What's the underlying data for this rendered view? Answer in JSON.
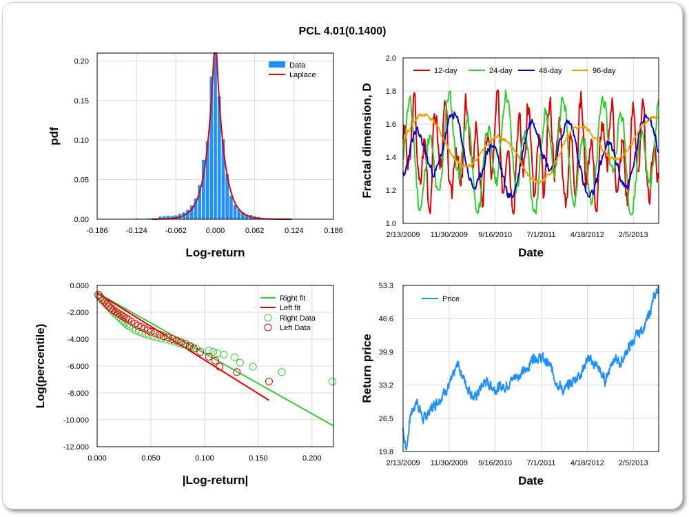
{
  "page_title": "PCL 4.01(0.1400)",
  "chart_data": [
    {
      "id": "histogram",
      "type": "bar",
      "xlabel": "Log-return",
      "ylabel": "pdf",
      "xlim": [
        -0.186,
        0.186
      ],
      "ylim": [
        0,
        0.21
      ],
      "x_ticks": [
        "-0.186",
        "-0.124",
        "-0.062",
        "0.000",
        "0.062",
        "0.124",
        "0.186"
      ],
      "y_ticks": [
        "0.00",
        "0.05",
        "0.10",
        "0.15",
        "0.20"
      ],
      "legend": [
        "Data",
        "Laplace"
      ],
      "legend_position": "top-right",
      "grid": true,
      "colors": {
        "Data": "#1e90ff",
        "Laplace": "#e00000"
      },
      "bin_width": 0.0062,
      "bins": [
        {
          "x": -0.124,
          "y": 0.0008
        },
        {
          "x": -0.1178,
          "y": 0.0006
        },
        {
          "x": -0.1116,
          "y": 0.0005
        },
        {
          "x": -0.1054,
          "y": 0.001
        },
        {
          "x": -0.0992,
          "y": 0.0012
        },
        {
          "x": -0.093,
          "y": 0.0011
        },
        {
          "x": -0.0868,
          "y": 0.0032
        },
        {
          "x": -0.0806,
          "y": 0.0038
        },
        {
          "x": -0.0744,
          "y": 0.0045
        },
        {
          "x": -0.0682,
          "y": 0.0041
        },
        {
          "x": -0.062,
          "y": 0.0048
        },
        {
          "x": -0.0558,
          "y": 0.0068
        },
        {
          "x": -0.0496,
          "y": 0.0085
        },
        {
          "x": -0.0434,
          "y": 0.0118
        },
        {
          "x": -0.0372,
          "y": 0.0172
        },
        {
          "x": -0.031,
          "y": 0.0262
        },
        {
          "x": -0.0248,
          "y": 0.0432
        },
        {
          "x": -0.0186,
          "y": 0.0752
        },
        {
          "x": -0.0124,
          "y": 0.0982
        },
        {
          "x": -0.0062,
          "y": 0.1802
        },
        {
          "x": 0.0,
          "y": 0.2102
        },
        {
          "x": 0.0062,
          "y": 0.1552
        },
        {
          "x": 0.0124,
          "y": 0.1012
        },
        {
          "x": 0.0186,
          "y": 0.0572
        },
        {
          "x": 0.0248,
          "y": 0.0298
        },
        {
          "x": 0.031,
          "y": 0.0182
        },
        {
          "x": 0.0372,
          "y": 0.0128
        },
        {
          "x": 0.0434,
          "y": 0.0088
        },
        {
          "x": 0.0496,
          "y": 0.0062
        },
        {
          "x": 0.0558,
          "y": 0.0052
        },
        {
          "x": 0.062,
          "y": 0.0038
        },
        {
          "x": 0.0682,
          "y": 0.0028
        },
        {
          "x": 0.0744,
          "y": 0.0018
        },
        {
          "x": 0.0806,
          "y": 0.0012
        },
        {
          "x": 0.0868,
          "y": 0.001
        },
        {
          "x": 0.093,
          "y": 0.0008
        },
        {
          "x": 0.0992,
          "y": 0.0006
        },
        {
          "x": 0.1054,
          "y": 0.0004
        },
        {
          "x": 0.1116,
          "y": 0.0003
        },
        {
          "x": 0.1178,
          "y": 0.0002
        }
      ],
      "laplace": {
        "mu": 0.0,
        "b": 0.0125,
        "x_range": [
          -0.1,
          0.12
        ]
      }
    },
    {
      "id": "fractal",
      "type": "line",
      "xlabel": "Date",
      "ylabel": "Fractal dimension, D",
      "x_ticks": [
        "2/13/2009",
        "11/30/2009",
        "9/16/2010",
        "7/1/2011",
        "4/18/2012",
        "2/5/2013"
      ],
      "ylim": [
        1.0,
        2.0
      ],
      "y_ticks": [
        "1.0",
        "1.2",
        "1.4",
        "1.6",
        "1.8",
        "2.0"
      ],
      "legend_position": "top-left",
      "grid": true,
      "series": [
        {
          "name": "12-day",
          "color": "#e00000",
          "period": 13,
          "amp": 0.22,
          "base": 1.42,
          "noise": 0.12,
          "seed": 3
        },
        {
          "name": "24-day",
          "color": "#33cc33",
          "period": 24,
          "amp": 0.24,
          "base": 1.42,
          "noise": 0.07,
          "seed": 11
        },
        {
          "name": "48-day",
          "color": "#0000cc",
          "period": 48,
          "amp": 0.17,
          "base": 1.4,
          "noise": 0.04,
          "seed": 23
        },
        {
          "name": "96-day",
          "color": "#f0a000",
          "period": 96,
          "amp": 0.13,
          "base": 1.45,
          "noise": 0.02,
          "seed": 41
        }
      ],
      "n_points": 320
    },
    {
      "id": "tail",
      "type": "scatter",
      "xlabel": "|Log-return|",
      "ylabel": "Log(percentile)",
      "xlim": [
        0.0,
        0.22
      ],
      "ylim": [
        -12.0,
        0.0
      ],
      "x_ticks": [
        "0.000",
        "0.050",
        "0.100",
        "0.150",
        "0.200"
      ],
      "y_ticks": [
        "0.000",
        "-2.000",
        "-4.000",
        "-6.000",
        "-8.000",
        "-10.000",
        "-12.000"
      ],
      "legend": [
        "Right fit",
        "Left fit",
        "Right Data",
        "Left Data"
      ],
      "legend_position": "top-right",
      "grid": true,
      "colors": {
        "right": "#33cc33",
        "left": "#e00000"
      },
      "right_fit": {
        "x": [
          0.0,
          0.22
        ],
        "y": [
          -0.55,
          -10.45
        ]
      },
      "left_fit": {
        "x": [
          0.0,
          0.16
        ],
        "y": [
          -0.55,
          -8.55
        ]
      },
      "right_data": [
        [
          0.002,
          -0.75
        ],
        [
          0.004,
          -0.95
        ],
        [
          0.006,
          -1.15
        ],
        [
          0.008,
          -1.35
        ],
        [
          0.01,
          -1.55
        ],
        [
          0.012,
          -1.72
        ],
        [
          0.014,
          -1.9
        ],
        [
          0.016,
          -2.05
        ],
        [
          0.018,
          -2.2
        ],
        [
          0.02,
          -2.35
        ],
        [
          0.022,
          -2.5
        ],
        [
          0.024,
          -2.65
        ],
        [
          0.026,
          -2.8
        ],
        [
          0.028,
          -2.92
        ],
        [
          0.03,
          -3.05
        ],
        [
          0.033,
          -3.2
        ],
        [
          0.036,
          -3.35
        ],
        [
          0.039,
          -3.45
        ],
        [
          0.042,
          -3.55
        ],
        [
          0.045,
          -3.62
        ],
        [
          0.048,
          -3.7
        ],
        [
          0.052,
          -3.8
        ],
        [
          0.056,
          -3.88
        ],
        [
          0.06,
          -3.95
        ],
        [
          0.064,
          -4.02
        ],
        [
          0.068,
          -4.1
        ],
        [
          0.072,
          -4.2
        ],
        [
          0.076,
          -4.3
        ],
        [
          0.08,
          -4.4
        ],
        [
          0.084,
          -4.5
        ],
        [
          0.088,
          -4.58
        ],
        [
          0.092,
          -4.68
        ],
        [
          0.104,
          -4.85
        ],
        [
          0.108,
          -4.95
        ],
        [
          0.112,
          -5.05
        ],
        [
          0.118,
          -5.15
        ],
        [
          0.128,
          -5.35
        ],
        [
          0.133,
          -5.75
        ],
        [
          0.145,
          -6.05
        ],
        [
          0.172,
          -6.45
        ],
        [
          0.219,
          -7.15
        ]
      ],
      "left_data": [
        [
          0.001,
          -0.7
        ],
        [
          0.003,
          -0.9
        ],
        [
          0.005,
          -1.1
        ],
        [
          0.007,
          -1.25
        ],
        [
          0.009,
          -1.4
        ],
        [
          0.011,
          -1.55
        ],
        [
          0.013,
          -1.7
        ],
        [
          0.015,
          -1.82
        ],
        [
          0.017,
          -1.95
        ],
        [
          0.019,
          -2.05
        ],
        [
          0.021,
          -2.15
        ],
        [
          0.023,
          -2.25
        ],
        [
          0.025,
          -2.35
        ],
        [
          0.027,
          -2.45
        ],
        [
          0.029,
          -2.55
        ],
        [
          0.032,
          -2.7
        ],
        [
          0.035,
          -2.85
        ],
        [
          0.038,
          -3.0
        ],
        [
          0.041,
          -3.1
        ],
        [
          0.044,
          -3.22
        ],
        [
          0.047,
          -3.35
        ],
        [
          0.05,
          -3.45
        ],
        [
          0.054,
          -3.55
        ],
        [
          0.058,
          -3.65
        ],
        [
          0.062,
          -3.78
        ],
        [
          0.066,
          -3.88
        ],
        [
          0.07,
          -3.98
        ],
        [
          0.074,
          -4.1
        ],
        [
          0.078,
          -4.22
        ],
        [
          0.082,
          -4.35
        ],
        [
          0.086,
          -4.5
        ],
        [
          0.09,
          -4.7
        ],
        [
          0.096,
          -4.95
        ],
        [
          0.104,
          -5.3
        ],
        [
          0.11,
          -5.6
        ],
        [
          0.114,
          -6.05
        ],
        [
          0.13,
          -6.45
        ],
        [
          0.16,
          -7.15
        ]
      ]
    },
    {
      "id": "price",
      "type": "line",
      "xlabel": "Date",
      "ylabel": "Return price",
      "x_ticks": [
        "2/13/2009",
        "11/30/2009",
        "9/16/2010",
        "7/1/2011",
        "4/18/2012",
        "2/5/2013"
      ],
      "ylim": [
        19.8,
        53.3
      ],
      "y_ticks": [
        "19.8",
        "26.5",
        "33.2",
        "39.9",
        "46.6",
        "53.3"
      ],
      "legend": [
        "Price"
      ],
      "legend_position": "top-left",
      "grid": true,
      "color": "#1e90ff",
      "anchors": [
        [
          0.0,
          24.5
        ],
        [
          0.012,
          20.0
        ],
        [
          0.03,
          27.5
        ],
        [
          0.055,
          30.0
        ],
        [
          0.08,
          26.0
        ],
        [
          0.11,
          28.5
        ],
        [
          0.15,
          31.0
        ],
        [
          0.19,
          34.0
        ],
        [
          0.215,
          37.5
        ],
        [
          0.245,
          33.5
        ],
        [
          0.28,
          30.5
        ],
        [
          0.32,
          34.0
        ],
        [
          0.36,
          32.5
        ],
        [
          0.4,
          33.0
        ],
        [
          0.44,
          35.0
        ],
        [
          0.48,
          36.0
        ],
        [
          0.51,
          39.0
        ],
        [
          0.545,
          38.5
        ],
        [
          0.575,
          37.0
        ],
        [
          0.6,
          34.0
        ],
        [
          0.63,
          32.0
        ],
        [
          0.665,
          34.0
        ],
        [
          0.7,
          36.0
        ],
        [
          0.72,
          38.5
        ],
        [
          0.76,
          37.0
        ],
        [
          0.79,
          34.0
        ],
        [
          0.82,
          38.5
        ],
        [
          0.85,
          37.5
        ],
        [
          0.88,
          40.5
        ],
        [
          0.92,
          43.5
        ],
        [
          0.95,
          45.5
        ],
        [
          0.975,
          49.5
        ],
        [
          1.0,
          53.3
        ]
      ],
      "n_points": 900
    }
  ]
}
